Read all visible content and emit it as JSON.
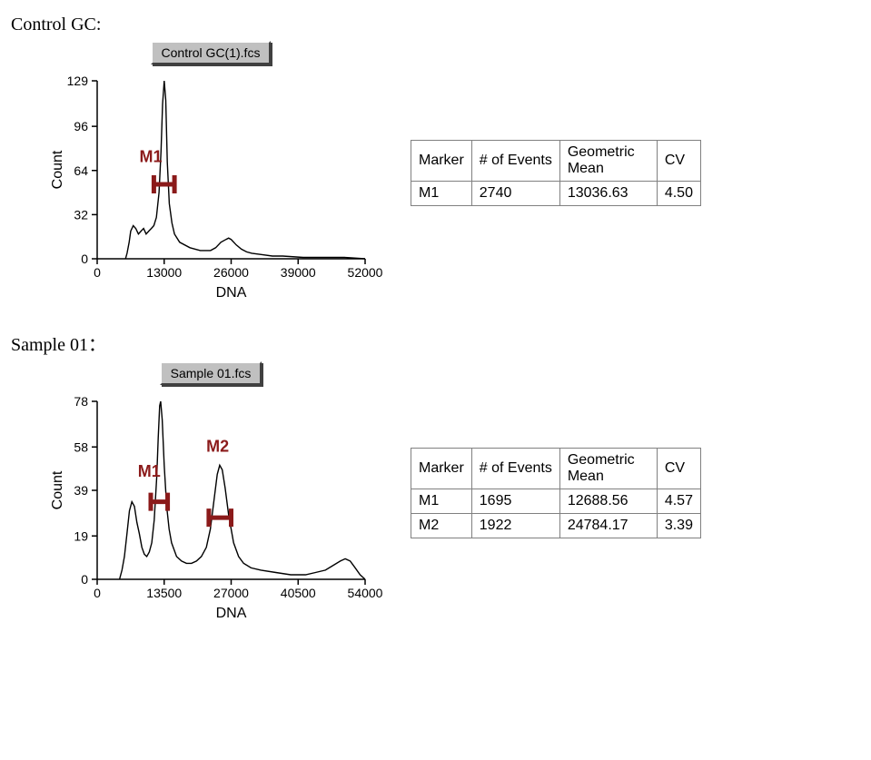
{
  "global": {
    "page_bg": "#ffffff",
    "text_color": "#000000",
    "marker_color": "#8b1a1a",
    "line_color": "#000000",
    "box_bg": "#c0c0c0",
    "table_border": "#808080",
    "tick_fontsize": 14,
    "axis_title_fontsize": 16,
    "marker_fontsize": 18
  },
  "sections": [
    {
      "title": "Control GC:",
      "chart": {
        "type": "histogram-line",
        "filename": "Control GC(1).fcs",
        "xlabel": "DNA",
        "ylabel": "Count",
        "xlim": [
          0,
          52000
        ],
        "ylim": [
          0,
          129
        ],
        "xticks": [
          0,
          13000,
          26000,
          39000,
          52000
        ],
        "yticks": [
          0,
          32,
          64,
          96,
          129
        ],
        "markers": [
          {
            "name": "M1",
            "xstart": 11000,
            "xend": 15000,
            "y": 54,
            "label_x": 8200,
            "label_y": 70
          }
        ],
        "curve": [
          [
            5500,
            0
          ],
          [
            5800,
            4
          ],
          [
            6200,
            12
          ],
          [
            6500,
            20
          ],
          [
            7000,
            24
          ],
          [
            7500,
            22
          ],
          [
            8000,
            18
          ],
          [
            8500,
            20
          ],
          [
            9000,
            22
          ],
          [
            9500,
            18
          ],
          [
            10000,
            20
          ],
          [
            10500,
            22
          ],
          [
            11000,
            24
          ],
          [
            11500,
            30
          ],
          [
            12000,
            48
          ],
          [
            12400,
            78
          ],
          [
            12700,
            112
          ],
          [
            13000,
            129
          ],
          [
            13300,
            115
          ],
          [
            13600,
            70
          ],
          [
            14000,
            40
          ],
          [
            14500,
            26
          ],
          [
            15000,
            18
          ],
          [
            16000,
            12
          ],
          [
            18000,
            8
          ],
          [
            20000,
            6
          ],
          [
            22000,
            6
          ],
          [
            23000,
            8
          ],
          [
            24000,
            12
          ],
          [
            25000,
            14
          ],
          [
            25500,
            15
          ],
          [
            26000,
            14
          ],
          [
            27000,
            10
          ],
          [
            28000,
            7
          ],
          [
            29000,
            5
          ],
          [
            30000,
            4
          ],
          [
            32000,
            3
          ],
          [
            34000,
            2
          ],
          [
            36000,
            2
          ],
          [
            40000,
            1
          ],
          [
            44000,
            1
          ],
          [
            48000,
            1
          ],
          [
            52000,
            0
          ]
        ]
      },
      "table": {
        "columns": [
          "Marker",
          "# of Events",
          "Geometric Mean",
          "CV"
        ],
        "rows": [
          [
            "M1",
            "2740",
            "13036.63",
            "4.50"
          ]
        ]
      }
    },
    {
      "title": "Sample 01：",
      "chart": {
        "type": "histogram-line",
        "filename": "Sample 01.fcs",
        "xlabel": "DNA",
        "ylabel": "Count",
        "xlim": [
          0,
          54000
        ],
        "ylim": [
          0,
          78
        ],
        "xticks": [
          0,
          13500,
          27000,
          40500,
          54000
        ],
        "yticks": [
          0,
          19,
          39,
          58,
          78
        ],
        "markers": [
          {
            "name": "M1",
            "xstart": 10800,
            "xend": 14200,
            "y": 34,
            "label_x": 8200,
            "label_y": 45
          },
          {
            "name": "M2",
            "xstart": 22500,
            "xend": 27000,
            "y": 27,
            "label_x": 22000,
            "label_y": 56
          }
        ],
        "curve": [
          [
            4500,
            0
          ],
          [
            5000,
            4
          ],
          [
            5500,
            10
          ],
          [
            6000,
            20
          ],
          [
            6500,
            30
          ],
          [
            7000,
            34
          ],
          [
            7500,
            32
          ],
          [
            8000,
            25
          ],
          [
            8500,
            20
          ],
          [
            9000,
            14
          ],
          [
            9500,
            11
          ],
          [
            10000,
            10
          ],
          [
            10500,
            12
          ],
          [
            11000,
            16
          ],
          [
            11500,
            26
          ],
          [
            12000,
            45
          ],
          [
            12300,
            62
          ],
          [
            12600,
            76
          ],
          [
            12800,
            78
          ],
          [
            13100,
            70
          ],
          [
            13500,
            50
          ],
          [
            14000,
            32
          ],
          [
            14500,
            22
          ],
          [
            15000,
            16
          ],
          [
            16000,
            10
          ],
          [
            17000,
            8
          ],
          [
            18000,
            7
          ],
          [
            19000,
            7
          ],
          [
            20000,
            8
          ],
          [
            21000,
            10
          ],
          [
            22000,
            14
          ],
          [
            22800,
            22
          ],
          [
            23500,
            34
          ],
          [
            24200,
            46
          ],
          [
            24700,
            50
          ],
          [
            25200,
            48
          ],
          [
            25800,
            40
          ],
          [
            26500,
            28
          ],
          [
            27500,
            16
          ],
          [
            28500,
            10
          ],
          [
            29500,
            7
          ],
          [
            31000,
            5
          ],
          [
            33000,
            4
          ],
          [
            36000,
            3
          ],
          [
            39000,
            2
          ],
          [
            42000,
            2
          ],
          [
            44000,
            3
          ],
          [
            46000,
            4
          ],
          [
            47500,
            6
          ],
          [
            49000,
            8
          ],
          [
            50000,
            9
          ],
          [
            51000,
            8
          ],
          [
            52000,
            5
          ],
          [
            53000,
            2
          ],
          [
            54000,
            0
          ]
        ]
      },
      "table": {
        "columns": [
          "Marker",
          "# of Events",
          "Geometric Mean",
          "CV"
        ],
        "rows": [
          [
            "M1",
            "1695",
            "12688.56",
            "4.57"
          ],
          [
            "M2",
            "1922",
            "24784.17",
            "3.39"
          ]
        ]
      }
    }
  ]
}
